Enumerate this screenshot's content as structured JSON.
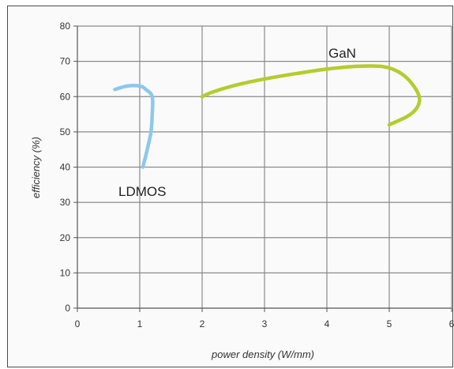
{
  "chart_data": {
    "type": "line",
    "title": "",
    "xlabel": "power density (W/mm)",
    "ylabel": "efficiency (%)",
    "xlim": [
      0,
      6
    ],
    "ylim": [
      0,
      80
    ],
    "xticks": [
      "0",
      "1",
      "2",
      "3",
      "4",
      "5",
      "6"
    ],
    "yticks": [
      "0",
      "10",
      "20",
      "30",
      "40",
      "50",
      "60",
      "70",
      "80"
    ],
    "grid": true,
    "series": [
      {
        "name": "LDMOS",
        "color": "#8cc8ec",
        "points": [
          [
            0.6,
            62
          ],
          [
            0.8,
            63
          ],
          [
            1.0,
            63
          ],
          [
            1.1,
            62
          ],
          [
            1.2,
            60
          ],
          [
            1.2,
            55
          ],
          [
            1.18,
            50
          ],
          [
            1.12,
            45
          ],
          [
            1.05,
            40
          ]
        ]
      },
      {
        "name": "GaN",
        "color": "#b4cc2e",
        "points": [
          [
            2.0,
            60
          ],
          [
            2.2,
            61.5
          ],
          [
            2.6,
            63.5
          ],
          [
            3.0,
            65
          ],
          [
            3.5,
            66.5
          ],
          [
            4.0,
            67.8
          ],
          [
            4.5,
            68.6
          ],
          [
            4.9,
            68.5
          ],
          [
            5.15,
            67
          ],
          [
            5.35,
            64
          ],
          [
            5.48,
            60
          ],
          [
            5.45,
            57
          ],
          [
            5.3,
            54.5
          ],
          [
            5.0,
            52
          ]
        ]
      }
    ]
  }
}
